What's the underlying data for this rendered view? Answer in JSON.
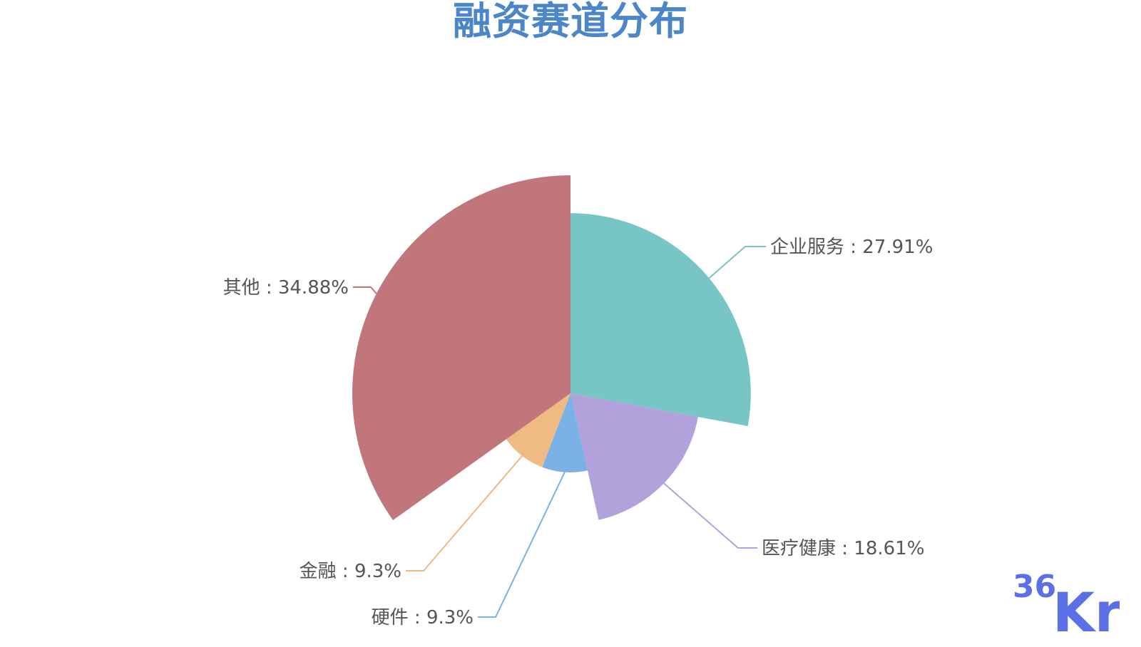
{
  "chart_data": {
    "type": "pie",
    "variant": "rose",
    "title": "融资赛道分布",
    "slices": [
      {
        "name": "企业服务",
        "value": 27.91,
        "label": "企业服务 : 27.91%",
        "color": "#78c5c5"
      },
      {
        "name": "医疗健康",
        "value": 18.61,
        "label": "医疗健康 : 18.61%",
        "color": "#b1a2dc"
      },
      {
        "name": "硬件",
        "value": 9.3,
        "label": "硬件 : 9.3%",
        "color": "#7ab1e6"
      },
      {
        "name": "金融",
        "value": 9.3,
        "label": "金融 : 9.3%",
        "color": "#efbb83"
      },
      {
        "name": "其他",
        "value": 34.88,
        "label": "其他 : 34.88%",
        "color": "#c0767b"
      }
    ]
  },
  "logo": {
    "text_36": "36",
    "text_kr": "Kr",
    "color": "#5b6fe6"
  }
}
